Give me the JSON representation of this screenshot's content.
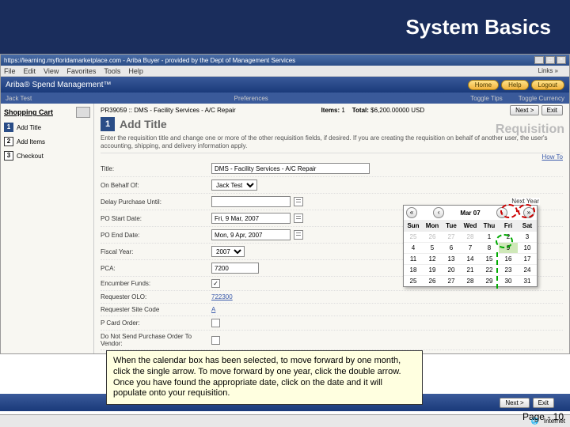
{
  "slide": {
    "title": "System Basics",
    "page": "Page - 10",
    "callout": "When the calendar box has been selected, to move forward by one month, click the single arrow.  To move forward by one year, click the double arrow.  Once you have found the appropriate date, click on the date and it will populate onto your requisition."
  },
  "browser": {
    "title": "https://learning.myfloridamarketplace.com - Ariba Buyer - provided by the Dept of Management Services",
    "menus": [
      "File",
      "Edit",
      "View",
      "Favorites",
      "Tools",
      "Help"
    ],
    "links_label": "Links »"
  },
  "app": {
    "brand": "Ariba® Spend Management™",
    "header_buttons": {
      "home": "Home",
      "help": "Help",
      "logout": "Logout"
    },
    "sub": {
      "left": "Jack Test",
      "mid": "Preferences",
      "r1": "Toggle Tips",
      "r2": "Toggle Currency"
    }
  },
  "sidebar": {
    "cart": "Shopping Cart",
    "items": [
      {
        "n": "1",
        "label": "Add Title",
        "active": true
      },
      {
        "n": "2",
        "label": "Add Items",
        "active": false
      },
      {
        "n": "3",
        "label": "Checkout",
        "active": false
      }
    ]
  },
  "req": {
    "id": "PR39059 :: DMS - Facility Services - A/C Repair",
    "items_lbl": "Items:",
    "items": "1",
    "total_lbl": "Total:",
    "total": "$6,200.00000 USD",
    "next": "Next >",
    "exit": "Exit",
    "sec_num": "1",
    "sec_title": "Add Title",
    "badge": "Requisition",
    "instr": "Enter the requisition title and change one or more of the other requisition fields, if desired. If you are creating the requisition on behalf of another user, the user's accounting, shipping, and delivery information apply.",
    "howto": "How To"
  },
  "form": {
    "title": {
      "lbl": "Title:",
      "val": "DMS - Facility Services - A/C Repair"
    },
    "onbehalf": {
      "lbl": "On Behalf Of:",
      "val": "Jack Test"
    },
    "delay": {
      "lbl": "Delay Purchase Until:",
      "val": ""
    },
    "postart": {
      "lbl": "PO Start Date:",
      "val": "Fri, 9 Mar, 2007"
    },
    "poend": {
      "lbl": "PO End Date:",
      "val": "Mon, 9 Apr, 2007"
    },
    "fiscal": {
      "lbl": "Fiscal Year:",
      "val": "2007"
    },
    "pca": {
      "lbl": "PCA:",
      "val": "7200"
    },
    "enc": {
      "lbl": "Encumber Funds:",
      "checked": true
    },
    "olo": {
      "lbl": "Requester OLO:",
      "val": "722300"
    },
    "site": {
      "lbl": "Requester Site Code",
      "val": "A"
    },
    "pcard": {
      "lbl": "P Card Order:",
      "checked": false
    },
    "dns": {
      "lbl": "Do Not Send Purchase Order To Vendor:",
      "checked": false
    }
  },
  "calendar": {
    "month": "Mar 07",
    "next_year": "Next Year",
    "dow": [
      "Sun",
      "Mon",
      "Tue",
      "Wed",
      "Thu",
      "Fri",
      "Sat"
    ],
    "cells": [
      {
        "d": "25",
        "o": true
      },
      {
        "d": "26",
        "o": true
      },
      {
        "d": "27",
        "o": true
      },
      {
        "d": "28",
        "o": true
      },
      {
        "d": "1"
      },
      {
        "d": "2"
      },
      {
        "d": "3"
      },
      {
        "d": "4"
      },
      {
        "d": "5"
      },
      {
        "d": "6"
      },
      {
        "d": "7"
      },
      {
        "d": "8"
      },
      {
        "d": "9",
        "sel": true
      },
      {
        "d": "10"
      },
      {
        "d": "11"
      },
      {
        "d": "12"
      },
      {
        "d": "13"
      },
      {
        "d": "14"
      },
      {
        "d": "15"
      },
      {
        "d": "16"
      },
      {
        "d": "17"
      },
      {
        "d": "18"
      },
      {
        "d": "19"
      },
      {
        "d": "20"
      },
      {
        "d": "21"
      },
      {
        "d": "22"
      },
      {
        "d": "23"
      },
      {
        "d": "24"
      },
      {
        "d": "25"
      },
      {
        "d": "26"
      },
      {
        "d": "27"
      },
      {
        "d": "28"
      },
      {
        "d": "29"
      },
      {
        "d": "30"
      },
      {
        "d": "31"
      }
    ]
  },
  "status": {
    "internet": "Internet"
  }
}
